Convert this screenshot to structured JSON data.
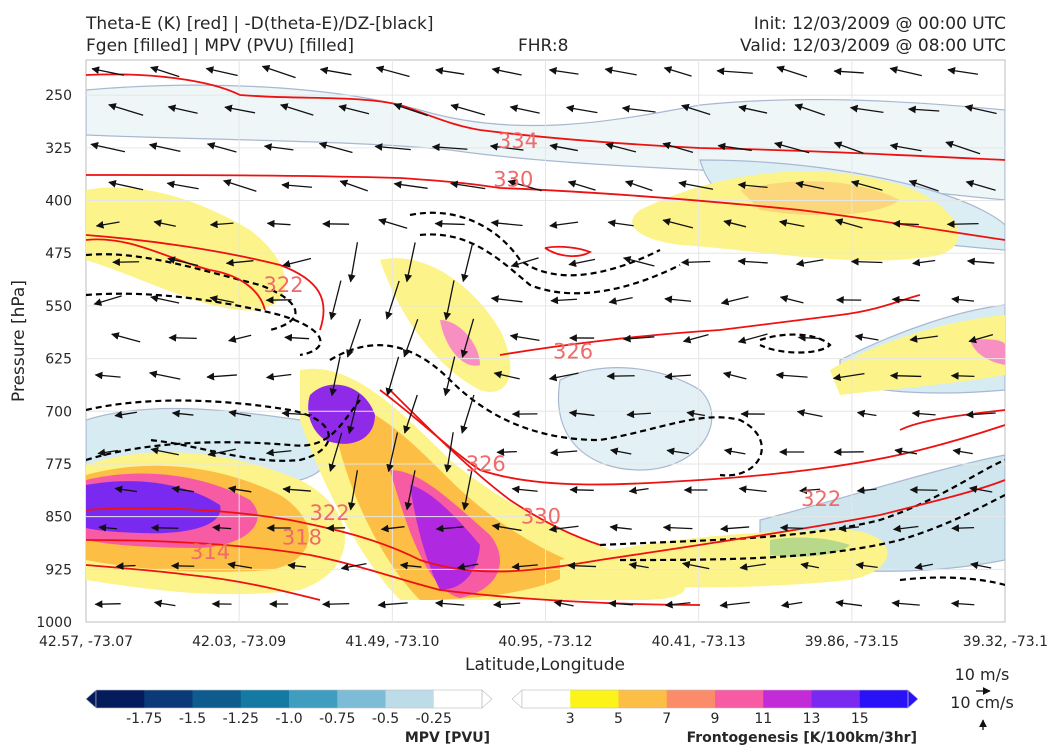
{
  "header": {
    "line1_left": "Theta-E (K) [red] | -D(theta-E)/DZ-[black]",
    "line2_left": "Fgen [filled] | MPV (PVU) [filled]",
    "fhr": "FHR:8",
    "init": "Init: 12/03/2009 @ 00:00 UTC",
    "valid": "Valid: 12/03/2009 @ 08:00 UTC"
  },
  "chart_data": {
    "type": "cross-section",
    "title": "",
    "xlabel": "Latitude,Longitude",
    "ylabel": "Pressure [hPa]",
    "ylim": [
      1000,
      200
    ],
    "x_ticks": [
      "42.57, -73.07",
      "42.03, -73.09",
      "41.49, -73.10",
      "40.95, -73.12",
      "40.41, -73.13",
      "39.86, -73.15",
      "39.32, -73.1"
    ],
    "y_ticks": [
      250,
      325,
      400,
      475,
      550,
      625,
      700,
      775,
      850,
      925,
      1000
    ],
    "grid": true,
    "theta_e_contour_labels": [
      {
        "text": "334",
        "x_frac": 0.47,
        "p": 325
      },
      {
        "text": "330",
        "x_frac": 0.465,
        "p": 380
      },
      {
        "text": "322",
        "x_frac": 0.215,
        "p": 530
      },
      {
        "text": "326",
        "x_frac": 0.53,
        "p": 625
      },
      {
        "text": "326",
        "x_frac": 0.435,
        "p": 785
      },
      {
        "text": "322",
        "x_frac": 0.8,
        "p": 835
      },
      {
        "text": "330",
        "x_frac": 0.495,
        "p": 860
      },
      {
        "text": "322",
        "x_frac": 0.265,
        "p": 855
      },
      {
        "text": "318",
        "x_frac": 0.235,
        "p": 890
      },
      {
        "text": "314",
        "x_frac": 0.135,
        "p": 910
      }
    ],
    "mpv_colorbar": {
      "title": "MPV [PVU]",
      "ticks": [
        "-1.75",
        "-1.5",
        "-1.25",
        "-1.0",
        "-0.75",
        "-0.5",
        "-0.25"
      ],
      "colors": [
        "#041b5c",
        "#0a3a78",
        "#0e5b8e",
        "#1479a3",
        "#3f9dbf",
        "#7dbcd6",
        "#bcdde8",
        "#ffffff"
      ]
    },
    "fgen_colorbar": {
      "title": "Frontogenesis [K/100km/3hr]",
      "ticks": [
        "3",
        "5",
        "7",
        "9",
        "11",
        "13",
        "15"
      ],
      "colors": [
        "#ffffff",
        "#fcf418",
        "#fcbe44",
        "#fb8c6a",
        "#f65ba4",
        "#c32ad8",
        "#7a2af0",
        "#2a12f8"
      ]
    },
    "wind_key": {
      "label_horizontal": "10 m/s",
      "label_vertical": "10 cm/s"
    }
  }
}
